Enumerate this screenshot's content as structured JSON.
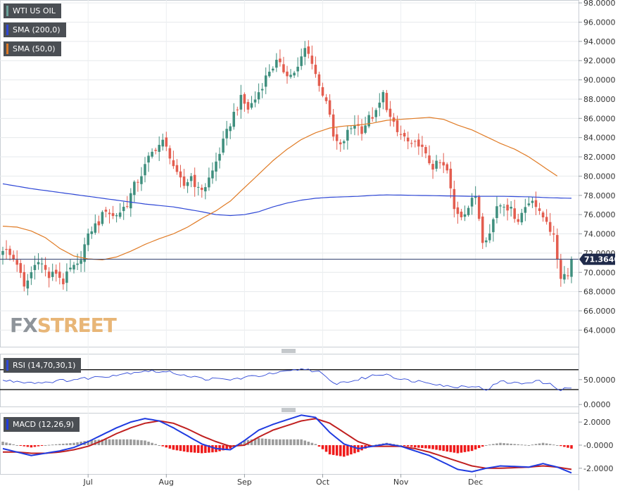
{
  "colors": {
    "bull": "#3f8f7e",
    "bear": "#e35d4f",
    "sma200": "#2f48d6",
    "sma50": "#e07b25",
    "rsi": "#2f48d6",
    "macd": "#1f3be0",
    "macd_signal": "#c01f1f",
    "hist_pos": "#9b9b9b",
    "hist_neg": "#ef1b1b",
    "price_line": "#2a3a6a",
    "price_badge": "#1f2a4a"
  },
  "legends": {
    "main": "WTI US OIL",
    "sma200": "SMA (200,0)",
    "sma50": "SMA (50,0)",
    "rsi": "RSI (14,70,30,1)",
    "macd": "MACD (12,26,9)"
  },
  "watermark": {
    "fx": "FX",
    "street": "STREET"
  },
  "current_price": "71.3640",
  "chart_data": [
    {
      "type": "candlestick",
      "title": "WTI US OIL",
      "x_labels": [
        "Jul",
        "Aug",
        "Sep",
        "Oct",
        "Nov",
        "Dec"
      ],
      "y_ticks": [
        "98.0000",
        "96.0000",
        "94.0000",
        "92.0000",
        "90.0000",
        "88.0000",
        "86.0000",
        "84.0000",
        "82.0000",
        "80.0000",
        "78.0000",
        "76.0000",
        "74.0000",
        "72.0000",
        "70.0000",
        "68.0000",
        "66.0000",
        "64.0000"
      ],
      "ylim": [
        62.2,
        98.3
      ],
      "last_price": 71.364,
      "anchors": [
        [
          0,
          72.5
        ],
        [
          4,
          71.0
        ],
        [
          6,
          68.3
        ],
        [
          8,
          70.0
        ],
        [
          10,
          71.5
        ],
        [
          13,
          69.5
        ],
        [
          15,
          70.0
        ],
        [
          17,
          69.0
        ],
        [
          19,
          70.3
        ],
        [
          21,
          70.6
        ],
        [
          23,
          72.8
        ],
        [
          25,
          74.5
        ],
        [
          27,
          75.2
        ],
        [
          29,
          76.6
        ],
        [
          31,
          75.8
        ],
        [
          33,
          76.3
        ],
        [
          35,
          77.2
        ],
        [
          37,
          79.0
        ],
        [
          39,
          80.2
        ],
        [
          41,
          81.8
        ],
        [
          43,
          83.0
        ],
        [
          45,
          83.5
        ],
        [
          47,
          82.2
        ],
        [
          49,
          80.0
        ],
        [
          51,
          79.0
        ],
        [
          53,
          80.0
        ],
        [
          55,
          78.5
        ],
        [
          57,
          79.0
        ],
        [
          59,
          80.5
        ],
        [
          61,
          82.5
        ],
        [
          63,
          84.5
        ],
        [
          65,
          86.5
        ],
        [
          67,
          88.0
        ],
        [
          69,
          87.0
        ],
        [
          71,
          88.0
        ],
        [
          73,
          89.5
        ],
        [
          75,
          91.0
        ],
        [
          77,
          91.8
        ],
        [
          79,
          91.0
        ],
        [
          81,
          90.5
        ],
        [
          83,
          91.2
        ],
        [
          85,
          93.2
        ],
        [
          87,
          92.0
        ],
        [
          89,
          89.3
        ],
        [
          91,
          88.0
        ],
        [
          93,
          84.0
        ],
        [
          95,
          83.0
        ],
        [
          97,
          84.5
        ],
        [
          99,
          85.5
        ],
        [
          101,
          84.8
        ],
        [
          103,
          86.0
        ],
        [
          105,
          86.5
        ],
        [
          107,
          88.5
        ],
        [
          109,
          86.0
        ],
        [
          111,
          84.5
        ],
        [
          113,
          84.0
        ],
        [
          115,
          83.0
        ],
        [
          117,
          83.5
        ],
        [
          119,
          82.0
        ],
        [
          121,
          81.0
        ],
        [
          123,
          81.3
        ],
        [
          125,
          80.5
        ],
        [
          127,
          76.5
        ],
        [
          129,
          76.0
        ],
        [
          131,
          76.8
        ],
        [
          133,
          78.0
        ],
        [
          135,
          73.5
        ],
        [
          137,
          74.0
        ],
        [
          139,
          77.0
        ],
        [
          141,
          77.2
        ],
        [
          143,
          76.4
        ],
        [
          145,
          75.5
        ],
        [
          147,
          76.8
        ],
        [
          149,
          77.8
        ],
        [
          151,
          76.0
        ],
        [
          153,
          75.5
        ],
        [
          155,
          73.5
        ],
        [
          157,
          69.6
        ],
        [
          159,
          70.0
        ],
        [
          160,
          71.364
        ]
      ],
      "sma200": [
        [
          0,
          79.2
        ],
        [
          8,
          78.7
        ],
        [
          16,
          78.3
        ],
        [
          24,
          77.9
        ],
        [
          32,
          77.5
        ],
        [
          40,
          77.1
        ],
        [
          48,
          76.8
        ],
        [
          56,
          76.3
        ],
        [
          60,
          76.0
        ],
        [
          64,
          75.9
        ],
        [
          68,
          76.0
        ],
        [
          72,
          76.3
        ],
        [
          76,
          76.8
        ],
        [
          80,
          77.2
        ],
        [
          84,
          77.5
        ],
        [
          88,
          77.7
        ],
        [
          92,
          77.8
        ],
        [
          96,
          77.85
        ],
        [
          100,
          77.9
        ],
        [
          104,
          78.0
        ],
        [
          108,
          78.05
        ],
        [
          116,
          78.0
        ],
        [
          124,
          77.95
        ],
        [
          132,
          77.9
        ],
        [
          140,
          77.9
        ],
        [
          148,
          77.85
        ],
        [
          154,
          77.75
        ],
        [
          160,
          77.7
        ]
      ],
      "sma50": [
        [
          0,
          74.8
        ],
        [
          4,
          74.7
        ],
        [
          8,
          74.3
        ],
        [
          12,
          73.6
        ],
        [
          16,
          72.5
        ],
        [
          20,
          71.7
        ],
        [
          24,
          71.4
        ],
        [
          28,
          71.3
        ],
        [
          32,
          71.6
        ],
        [
          36,
          72.2
        ],
        [
          40,
          72.9
        ],
        [
          44,
          73.5
        ],
        [
          48,
          74.0
        ],
        [
          52,
          74.7
        ],
        [
          56,
          75.6
        ],
        [
          60,
          76.4
        ],
        [
          64,
          77.4
        ],
        [
          68,
          78.8
        ],
        [
          72,
          80.2
        ],
        [
          76,
          81.6
        ],
        [
          80,
          82.8
        ],
        [
          84,
          83.8
        ],
        [
          88,
          84.5
        ],
        [
          92,
          85.0
        ],
        [
          96,
          85.2
        ],
        [
          100,
          85.3
        ],
        [
          104,
          85.5
        ],
        [
          108,
          85.8
        ],
        [
          112,
          85.9
        ],
        [
          116,
          86.0
        ],
        [
          118,
          86.05
        ],
        [
          120,
          86.1
        ],
        [
          124,
          85.9
        ],
        [
          128,
          85.3
        ],
        [
          132,
          84.8
        ],
        [
          136,
          84.1
        ],
        [
          140,
          83.4
        ],
        [
          144,
          82.8
        ],
        [
          148,
          82.0
        ],
        [
          152,
          81.0
        ],
        [
          156,
          80.0
        ]
      ],
      "note_x": "x values are trading-day index positions 0 to 160"
    },
    {
      "type": "line",
      "title": "RSI (14,70,30,1)",
      "y_ticks": [
        "50.0000",
        "0.0000"
      ],
      "levels": [
        70,
        30
      ],
      "ylim": [
        -4,
        102
      ],
      "values": [
        [
          0,
          48
        ],
        [
          10,
          44
        ],
        [
          20,
          50
        ],
        [
          30,
          58
        ],
        [
          40,
          68
        ],
        [
          48,
          64
        ],
        [
          56,
          52
        ],
        [
          64,
          50
        ],
        [
          72,
          58
        ],
        [
          80,
          66
        ],
        [
          85,
          72
        ],
        [
          89,
          65
        ],
        [
          93,
          42
        ],
        [
          99,
          48
        ],
        [
          104,
          58
        ],
        [
          108,
          62
        ],
        [
          112,
          50
        ],
        [
          120,
          45
        ],
        [
          126,
          35
        ],
        [
          132,
          38
        ],
        [
          136,
          30
        ],
        [
          140,
          46
        ],
        [
          146,
          42
        ],
        [
          150,
          48
        ],
        [
          154,
          40
        ],
        [
          157,
          30
        ],
        [
          160,
          33
        ]
      ]
    },
    {
      "type": "line",
      "title": "MACD (12,26,9)",
      "y_ticks": [
        "2.0000",
        "-0.0000",
        "-2.0000"
      ],
      "ylim": [
        -2.5,
        2.8
      ],
      "macd": [
        [
          0,
          -0.3
        ],
        [
          4,
          -0.6
        ],
        [
          8,
          -0.9
        ],
        [
          12,
          -0.7
        ],
        [
          16,
          -0.5
        ],
        [
          20,
          -0.2
        ],
        [
          24,
          0.3
        ],
        [
          28,
          0.9
        ],
        [
          32,
          1.5
        ],
        [
          36,
          2.0
        ],
        [
          40,
          2.3
        ],
        [
          44,
          2.1
        ],
        [
          48,
          1.5
        ],
        [
          52,
          0.8
        ],
        [
          56,
          0.1
        ],
        [
          60,
          -0.3
        ],
        [
          64,
          -0.4
        ],
        [
          68,
          0.4
        ],
        [
          72,
          1.3
        ],
        [
          76,
          1.8
        ],
        [
          80,
          2.2
        ],
        [
          84,
          2.6
        ],
        [
          88,
          2.4
        ],
        [
          92,
          1.1
        ],
        [
          96,
          0.1
        ],
        [
          100,
          -0.3
        ],
        [
          104,
          -0.1
        ],
        [
          108,
          0.1
        ],
        [
          112,
          -0.1
        ],
        [
          116,
          -0.5
        ],
        [
          120,
          -0.9
        ],
        [
          124,
          -1.5
        ],
        [
          128,
          -2.1
        ],
        [
          132,
          -2.3
        ],
        [
          136,
          -2.0
        ],
        [
          140,
          -1.8
        ],
        [
          144,
          -1.85
        ],
        [
          148,
          -1.9
        ],
        [
          152,
          -1.6
        ],
        [
          156,
          -1.9
        ],
        [
          160,
          -2.4
        ]
      ],
      "signal": [
        [
          0,
          -0.6
        ],
        [
          4,
          -0.6
        ],
        [
          8,
          -0.7
        ],
        [
          12,
          -0.7
        ],
        [
          16,
          -0.6
        ],
        [
          20,
          -0.4
        ],
        [
          24,
          -0.1
        ],
        [
          28,
          0.4
        ],
        [
          32,
          1.0
        ],
        [
          36,
          1.5
        ],
        [
          40,
          1.9
        ],
        [
          44,
          2.1
        ],
        [
          48,
          1.9
        ],
        [
          52,
          1.4
        ],
        [
          56,
          0.8
        ],
        [
          60,
          0.3
        ],
        [
          64,
          -0.1
        ],
        [
          68,
          0.0
        ],
        [
          72,
          0.7
        ],
        [
          76,
          1.3
        ],
        [
          80,
          1.7
        ],
        [
          84,
          2.1
        ],
        [
          88,
          2.3
        ],
        [
          92,
          1.9
        ],
        [
          96,
          1.1
        ],
        [
          100,
          0.3
        ],
        [
          104,
          -0.1
        ],
        [
          108,
          -0.1
        ],
        [
          112,
          -0.1
        ],
        [
          116,
          -0.3
        ],
        [
          120,
          -0.6
        ],
        [
          124,
          -1.0
        ],
        [
          128,
          -1.4
        ],
        [
          132,
          -1.8
        ],
        [
          136,
          -2.0
        ],
        [
          140,
          -2.0
        ],
        [
          144,
          -1.95
        ],
        [
          148,
          -1.9
        ],
        [
          152,
          -1.8
        ],
        [
          156,
          -1.9
        ],
        [
          160,
          -2.1
        ]
      ]
    }
  ]
}
